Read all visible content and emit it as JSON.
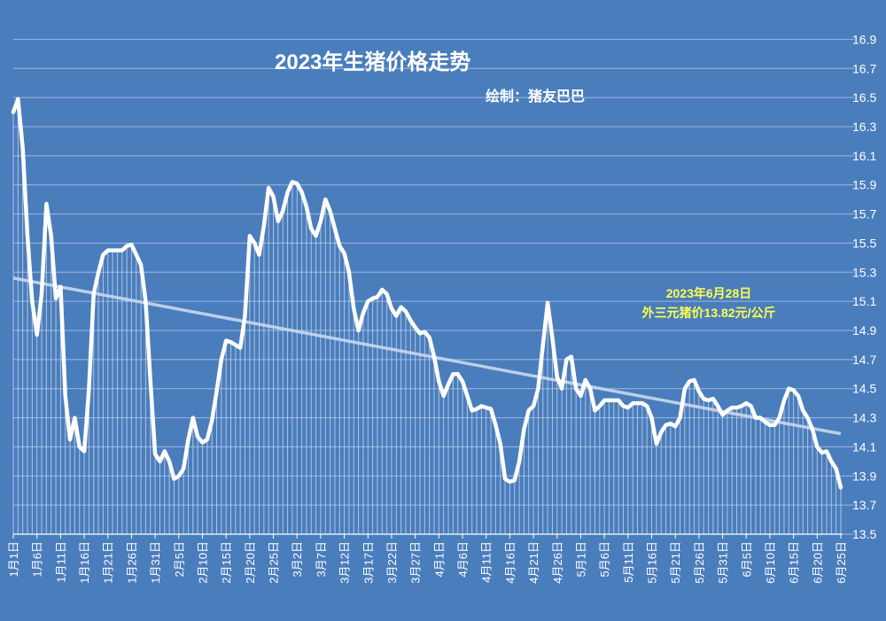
{
  "chart_data": {
    "type": "line",
    "title": "2023年生猪价格走势",
    "subtitle": "绘制：猪友巴巴",
    "annotation": {
      "date": "6月28日",
      "lines": [
        "2023年6月28日",
        "外三元猪价13.82元/公斤"
      ]
    },
    "ylim": [
      13.5,
      17.0
    ],
    "yticks": [
      13.5,
      13.7,
      13.9,
      14.1,
      14.3,
      14.5,
      14.7,
      14.9,
      15.1,
      15.3,
      15.5,
      15.7,
      15.9,
      16.1,
      16.3,
      16.5,
      16.7,
      16.9
    ],
    "x_tick_labels": [
      "1月1日",
      "1月6日",
      "1月11日",
      "1月16日",
      "1月21日",
      "1月26日",
      "1月31日",
      "2月5日",
      "2月10日",
      "2月15日",
      "2月20日",
      "2月25日",
      "3月2日",
      "3月7日",
      "3月12日",
      "3月17日",
      "3月22日",
      "3月27日",
      "4月1日",
      "4月6日",
      "4月11日",
      "4月16日",
      "4月21日",
      "4月26日",
      "5月1日",
      "5月6日",
      "5月11日",
      "5月16日",
      "5月21日",
      "5月26日",
      "5月31日",
      "6月5日",
      "6月10日",
      "6月15日",
      "6月20日",
      "6月25日"
    ],
    "grid": true,
    "trendline": {
      "start": 15.26,
      "end": 14.19
    },
    "colors": {
      "background": "#4a7dbc",
      "line": "#ffffff",
      "trend": "#c9d8ee",
      "annotation": "#ffff4d"
    },
    "series": [
      {
        "values": [
          16.4,
          16.49,
          16.15,
          15.55,
          15.1,
          14.87,
          15.15,
          15.77,
          15.55,
          15.12,
          15.2,
          14.45,
          14.15,
          14.3,
          14.1,
          14.07,
          14.5,
          15.15,
          15.3,
          15.42,
          15.45,
          15.45,
          15.45,
          15.45,
          15.48,
          15.49,
          15.42,
          15.35,
          15.1,
          14.55,
          14.05,
          14.0,
          14.07,
          14.0,
          13.88,
          13.9,
          13.95,
          14.15,
          14.3,
          14.17,
          14.13,
          14.15,
          14.28,
          14.48,
          14.7,
          14.83,
          14.82,
          14.8,
          14.78,
          15.0,
          15.55,
          15.5,
          15.42,
          15.62,
          15.88,
          15.82,
          15.65,
          15.72,
          15.85,
          15.92,
          15.91,
          15.85,
          15.75,
          15.6,
          15.55,
          15.65,
          15.8,
          15.72,
          15.6,
          15.48,
          15.43,
          15.3,
          15.05,
          14.9,
          15.02,
          15.1,
          15.12,
          15.13,
          15.18,
          15.15,
          15.05,
          15.0,
          15.06,
          15.03,
          14.97,
          14.92,
          14.88,
          14.89,
          14.85,
          14.72,
          14.55,
          14.45,
          14.53,
          14.6,
          14.6,
          14.55,
          14.45,
          14.35,
          14.36,
          14.38,
          14.37,
          14.36,
          14.25,
          14.12,
          13.88,
          13.86,
          13.87,
          14.0,
          14.22,
          14.35,
          14.38,
          14.5,
          14.8,
          15.09,
          14.85,
          14.58,
          14.5,
          14.7,
          14.72,
          14.5,
          14.45,
          14.56,
          14.5,
          14.35,
          14.38,
          14.42,
          14.42,
          14.42,
          14.42,
          14.38,
          14.37,
          14.4,
          14.4,
          14.4,
          14.38,
          14.3,
          14.12,
          14.2,
          14.25,
          14.26,
          14.24,
          14.3,
          14.5,
          14.55,
          14.56,
          14.48,
          14.43,
          14.42,
          14.43,
          14.38,
          14.32,
          14.35,
          14.37,
          14.37,
          14.38,
          14.4,
          14.38,
          14.3,
          14.3,
          14.27,
          14.25,
          14.25,
          14.3,
          14.42,
          14.5,
          14.49,
          14.45,
          14.35,
          14.3,
          14.22,
          14.1,
          14.06,
          14.07,
          14.0,
          13.95,
          13.82
        ]
      }
    ]
  }
}
